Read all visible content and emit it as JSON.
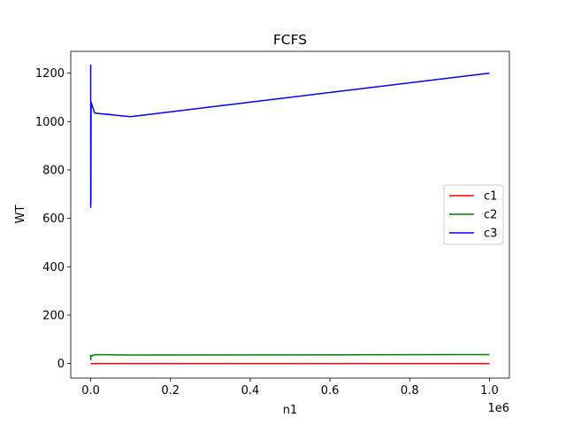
{
  "chart_data": {
    "type": "line",
    "title": "FCFS",
    "xlabel": "n1",
    "ylabel": "WT",
    "x_offset_label": "1e6",
    "xlim": [
      -50000,
      1050000
    ],
    "ylim": [
      -60,
      1290
    ],
    "x_ticks": [
      0,
      200000,
      400000,
      600000,
      800000,
      1000000
    ],
    "x_tick_labels": [
      "0.0",
      "0.2",
      "0.4",
      "0.6",
      "0.8",
      "1.0"
    ],
    "y_ticks": [
      0,
      200,
      400,
      600,
      800,
      1000,
      1200
    ],
    "y_tick_labels": [
      "0",
      "200",
      "400",
      "600",
      "800",
      "1000",
      "1200"
    ],
    "legend_position": "center-right",
    "series": [
      {
        "name": "c1",
        "color": "#ff0000",
        "x": [
          10,
          50,
          100,
          500,
          1000,
          10000,
          100000,
          1000000
        ],
        "y": [
          0,
          0,
          0,
          0,
          0,
          0,
          0,
          0
        ]
      },
      {
        "name": "c2",
        "color": "#008000",
        "x": [
          10,
          50,
          100,
          500,
          1000,
          10000,
          100000,
          1000000
        ],
        "y": [
          37,
          15,
          20,
          25,
          30,
          37,
          35,
          37
        ]
      },
      {
        "name": "c3",
        "color": "#0000ff",
        "x": [
          10,
          50,
          100,
          500,
          1000,
          10000,
          100000,
          1000000
        ],
        "y": [
          1235,
          645,
          700,
          660,
          1080,
          1035,
          1020,
          1200
        ]
      }
    ]
  }
}
